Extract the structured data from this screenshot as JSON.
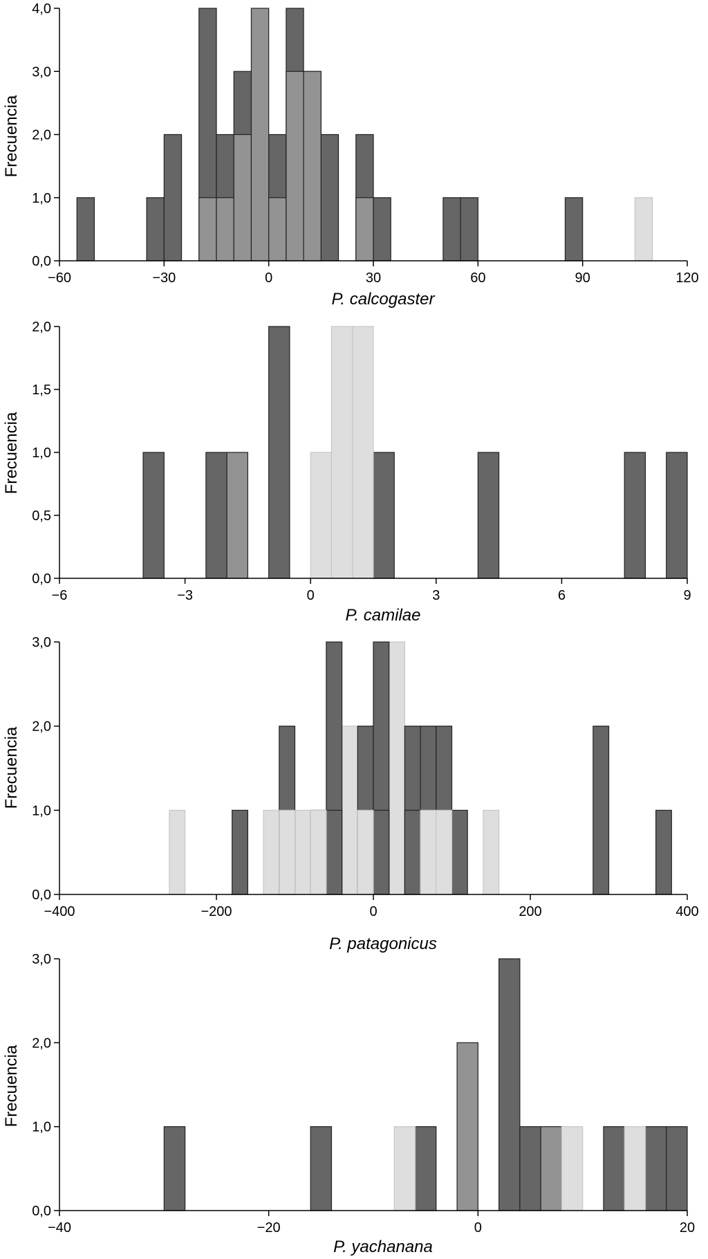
{
  "colors": {
    "dark": "#666666",
    "medium": "#939393",
    "light": "#dedede",
    "stroke": "#222222",
    "light_stroke": "#c6c6c6"
  },
  "chart_data": [
    {
      "type": "bar",
      "title": "",
      "xlabel": "P. calcogaster",
      "ylabel": "Frecuencia",
      "xlim": [
        -60,
        120
      ],
      "ylim": [
        0,
        4
      ],
      "xticks": [
        -60,
        -30,
        0,
        30,
        60,
        90,
        120
      ],
      "xtick_labels": [
        "−60",
        "−30",
        "0",
        "30",
        "60",
        "90",
        "120"
      ],
      "yticks": [
        0,
        1,
        2,
        3,
        4
      ],
      "ytick_labels": [
        "0,0",
        "1,0",
        "2,0",
        "3,0",
        "4,0"
      ],
      "bin_width": 5,
      "series": [
        {
          "name": "dark",
          "color_key": "dark",
          "bin_starts": [
            -55,
            -35,
            -30,
            -20,
            -15,
            -10,
            -5,
            0,
            5,
            10,
            15,
            25,
            30,
            50,
            55,
            85
          ],
          "values": [
            1,
            1,
            2,
            4,
            2,
            3,
            2,
            2,
            4,
            3,
            2,
            2,
            1,
            1,
            1,
            1
          ]
        },
        {
          "name": "medium",
          "color_key": "medium",
          "bin_starts": [
            -20,
            -15,
            -10,
            -5,
            0,
            5,
            10,
            25
          ],
          "values": [
            1,
            1,
            2,
            4,
            1,
            3,
            3,
            1
          ]
        },
        {
          "name": "light",
          "color_key": "light",
          "bin_starts": [
            105
          ],
          "values": [
            1
          ]
        }
      ]
    },
    {
      "type": "bar",
      "title": "",
      "xlabel": "P. camilae",
      "ylabel": "Frecuencia",
      "xlim": [
        -6,
        9
      ],
      "ylim": [
        0,
        2
      ],
      "xticks": [
        -6,
        -3,
        0,
        3,
        6,
        9
      ],
      "xtick_labels": [
        "−6",
        "−3",
        "0",
        "3",
        "6",
        "9"
      ],
      "yticks": [
        0,
        0.5,
        1,
        1.5,
        2
      ],
      "ytick_labels": [
        "0,0",
        "0,5",
        "1,0",
        "1,5",
        "2,0"
      ],
      "bin_width": 0.5,
      "series": [
        {
          "name": "dark",
          "color_key": "dark",
          "bin_starts": [
            -4,
            -2.5,
            -1,
            1.5,
            4,
            7.5,
            8.5
          ],
          "values": [
            1,
            1,
            2,
            1,
            1,
            1,
            1
          ]
        },
        {
          "name": "medium",
          "color_key": "medium",
          "bin_starts": [
            -2
          ],
          "values": [
            1
          ]
        },
        {
          "name": "light",
          "color_key": "light",
          "bin_starts": [
            0,
            0.5,
            1
          ],
          "values": [
            1,
            2,
            2
          ]
        }
      ]
    },
    {
      "type": "bar",
      "title": "",
      "xlabel": "P. patagonicus",
      "ylabel": "Frecuencia",
      "xlim": [
        -400,
        400
      ],
      "ylim": [
        0,
        3
      ],
      "xticks": [
        -400,
        -200,
        0,
        200,
        400
      ],
      "xtick_labels": [
        "−400",
        "−200",
        "0",
        "200",
        "400"
      ],
      "yticks": [
        0,
        1,
        2,
        3
      ],
      "ytick_labels": [
        "0,0",
        "1,0",
        "2,0",
        "3,0"
      ],
      "bin_width": 20,
      "series": [
        {
          "name": "light",
          "color_key": "light",
          "bin_starts": [
            -260,
            -140,
            -100,
            -40,
            20,
            140
          ],
          "values": [
            1,
            1,
            1,
            2,
            3,
            1
          ]
        },
        {
          "name": "dark",
          "color_key": "dark",
          "bin_starts": [
            -180,
            -120,
            -80,
            -60,
            -20,
            0,
            40,
            60,
            80,
            100,
            280,
            360
          ],
          "values": [
            1,
            2,
            1,
            3,
            2,
            3,
            2,
            2,
            2,
            1,
            2,
            1
          ]
        },
        {
          "name": "dark-overlap",
          "color_key": "dark",
          "bin_starts": [
            -60,
            0,
            40
          ],
          "values": [
            1,
            1,
            1
          ]
        },
        {
          "name": "light-overlap",
          "color_key": "light",
          "bin_starts": [
            -120,
            -80,
            -20,
            60,
            80
          ],
          "values": [
            1,
            1,
            1,
            1,
            1
          ]
        }
      ]
    },
    {
      "type": "bar",
      "title": "",
      "xlabel": "P. yachanana",
      "ylabel": "Frecuencia",
      "xlim": [
        -40,
        20
      ],
      "ylim": [
        0,
        3
      ],
      "xticks": [
        -40,
        -20,
        0,
        20
      ],
      "xtick_labels": [
        "−40",
        "−20",
        "0",
        "20"
      ],
      "yticks": [
        0,
        1,
        2,
        3
      ],
      "ytick_labels": [
        "0,0",
        "1,0",
        "2,0",
        "3,0"
      ],
      "bin_width": 2,
      "series": [
        {
          "name": "dark",
          "color_key": "dark",
          "bin_starts": [
            -30,
            -16,
            -6,
            2,
            4,
            12,
            16,
            18
          ],
          "values": [
            1,
            1,
            1,
            3,
            1,
            1,
            1,
            1
          ]
        },
        {
          "name": "medium",
          "color_key": "medium",
          "bin_starts": [
            -2,
            6
          ],
          "values": [
            2,
            1
          ]
        },
        {
          "name": "light",
          "color_key": "light",
          "bin_starts": [
            -8,
            8,
            14
          ],
          "values": [
            1,
            1,
            1
          ]
        }
      ]
    }
  ]
}
